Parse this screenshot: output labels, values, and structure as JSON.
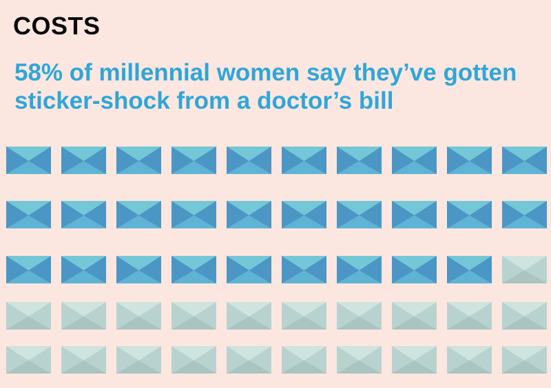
{
  "kicker": "COSTS",
  "headline": "58% of millennial women say they’ve gotten sticker-shock from a doctor’s bill",
  "colors": {
    "background": "#fbe7e0",
    "kicker": "#0a0a0a",
    "headline": "#2fa6d8",
    "filled_top": "#74c7d6",
    "filled_sides": "#4b96c4",
    "filled_bottom": "#5fb3d4",
    "empty_top": "#cfe3df",
    "empty_sides": "#b8d3cf",
    "empty_bottom": "#a9c4c1"
  },
  "chart_data": {
    "type": "waffle",
    "icon": "envelope-icon",
    "total": 50,
    "filled": 29,
    "rows": 5,
    "columns": 10,
    "percent": 58
  }
}
